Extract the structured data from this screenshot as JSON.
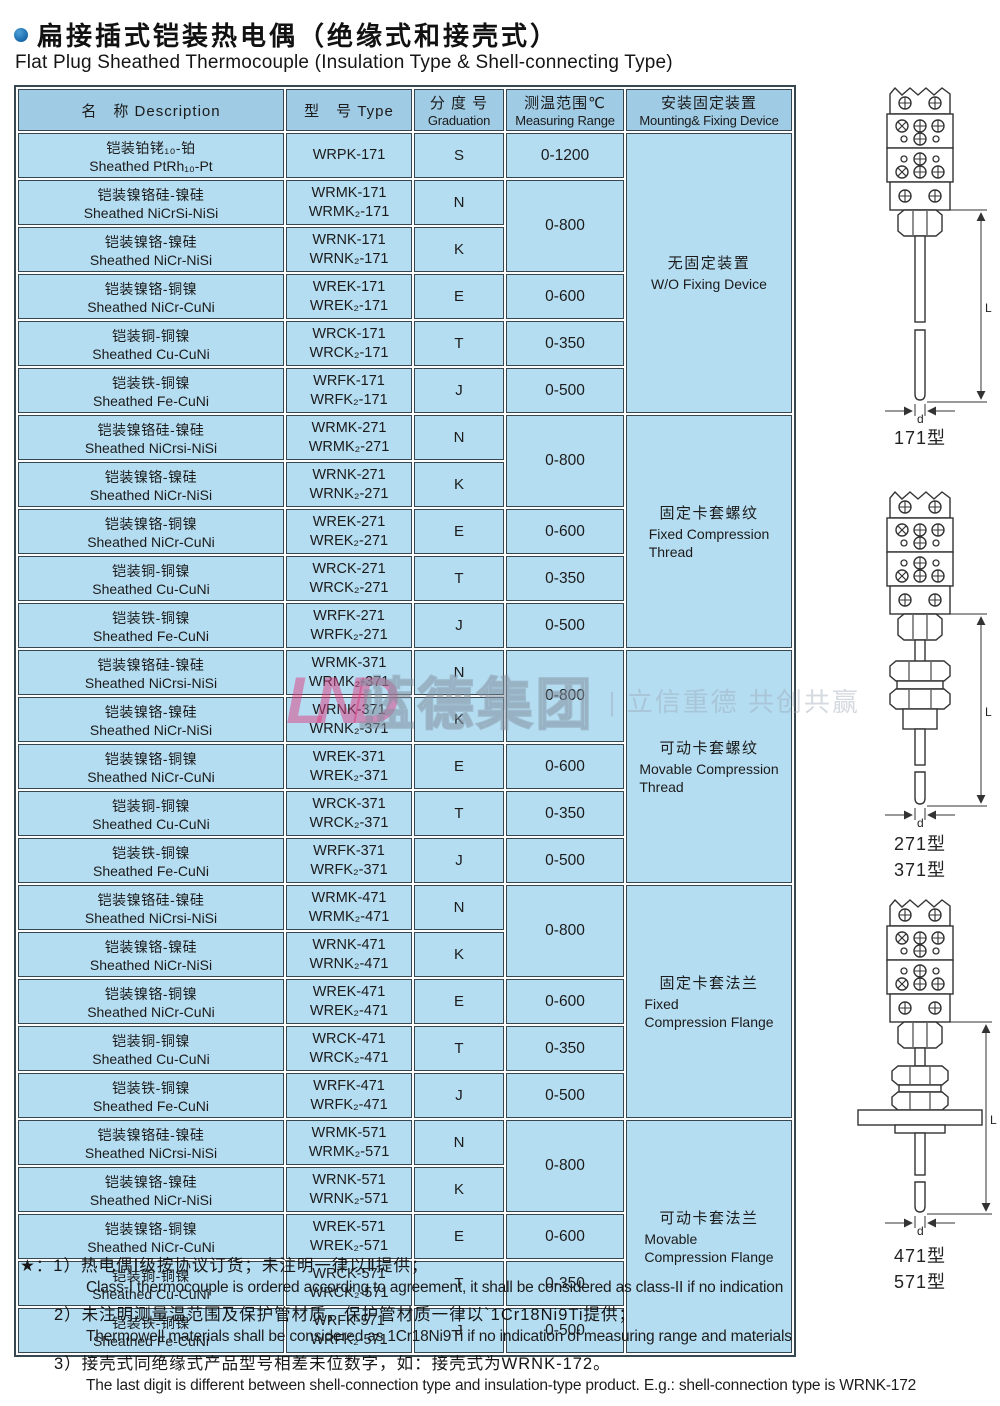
{
  "page": {
    "title_cn": "扁接插式铠装热电偶（绝缘式和接壳式）",
    "title_en": "Flat Plug Sheathed Thermocouple (Insulation Type & Shell-connecting Type)"
  },
  "colors": {
    "accent_blue": "#1565a8",
    "table_body": "#b5ddf1",
    "table_header": "#9fcbe4",
    "border": "#37474f",
    "watermark_pink": "#de3e82"
  },
  "table": {
    "header": {
      "c1": "名　称 Description",
      "c2": "型　号 Type",
      "c3_cn": "分 度 号",
      "c3_en": "Graduation",
      "c4_cn": "测温范围℃",
      "c4_en": "Measuring Range",
      "c5_cn": "安装固定装置",
      "c5_en": "Mounting& Fixing Device"
    },
    "groups": [
      {
        "mount_cn": "无固定装置",
        "mount_en": [
          "W/O Fixing Device"
        ],
        "rows": [
          {
            "cn": "铠装铂铑₁₀-铂",
            "en": "Sheathed PtRh₁₀-Pt",
            "types": [
              "WRPK-171"
            ],
            "grad": "S",
            "range": "0-1200",
            "span": 1
          },
          {
            "cn": "铠装镍铬硅-镍硅",
            "en": "Sheathed NiCrSi-NiSi",
            "types": [
              "WRMK-171",
              "WRMK₂-171"
            ],
            "grad": "N",
            "range": "0-800",
            "span": 2
          },
          {
            "cn": "铠装镍铬-镍硅",
            "en": "Sheathed NiCr-NiSi",
            "types": [
              "WRNK-171",
              "WRNK₂-171"
            ],
            "grad": "K"
          },
          {
            "cn": "铠装镍铬-铜镍",
            "en": "Sheathed NiCr-CuNi",
            "types": [
              "WREK-171",
              "WREK₂-171"
            ],
            "grad": "E",
            "range": "0-600",
            "span": 1
          },
          {
            "cn": "铠装铜-铜镍",
            "en": "Sheathed Cu-CuNi",
            "types": [
              "WRCK-171",
              "WRCK₂-171"
            ],
            "grad": "T",
            "range": "0-350",
            "span": 1
          },
          {
            "cn": "铠装铁-铜镍",
            "en": "Sheathed Fe-CuNi",
            "types": [
              "WRFK-171",
              "WRFK₂-171"
            ],
            "grad": "J",
            "range": "0-500",
            "span": 1
          }
        ]
      },
      {
        "mount_cn": "固定卡套螺纹",
        "mount_en": [
          "Fixed Compression",
          "Thread"
        ],
        "rows": [
          {
            "cn": "铠装镍铬硅-镍硅",
            "en": "Sheathed NiCrsi-NiSi",
            "types": [
              "WRMK-271",
              "WRMK₂-271"
            ],
            "grad": "N",
            "range": "0-800",
            "span": 2
          },
          {
            "cn": "铠装镍铬-镍硅",
            "en": "Sheathed NiCr-NiSi",
            "types": [
              "WRNK-271",
              "WRNK₂-271"
            ],
            "grad": "K"
          },
          {
            "cn": "铠装镍铬-铜镍",
            "en": "Sheathed NiCr-CuNi",
            "types": [
              "WREK-271",
              "WREK₂-271"
            ],
            "grad": "E",
            "range": "0-600",
            "span": 1
          },
          {
            "cn": "铠装铜-铜镍",
            "en": "Sheathed Cu-CuNi",
            "types": [
              "WRCK-271",
              "WRCK₂-271"
            ],
            "grad": "T",
            "range": "0-350",
            "span": 1
          },
          {
            "cn": "铠装铁-铜镍",
            "en": "Sheathed Fe-CuNi",
            "types": [
              "WRFK-271",
              "WRFK₂-271"
            ],
            "grad": "J",
            "range": "0-500",
            "span": 1
          }
        ]
      },
      {
        "mount_cn": "可动卡套螺纹",
        "mount_en": [
          "Movable Compression",
          "Thread"
        ],
        "rows": [
          {
            "cn": "铠装镍铬硅-镍硅",
            "en": "Sheathed NiCrsi-NiSi",
            "types": [
              "WRMK-371",
              "WRMK₂-371"
            ],
            "grad": "N",
            "range": "0-800",
            "span": 2
          },
          {
            "cn": "铠装镍铬-镍硅",
            "en": "Sheathed NiCr-NiSi",
            "types": [
              "WRNK-371",
              "WRNK₂-371"
            ],
            "grad": "K"
          },
          {
            "cn": "铠装镍铬-铜镍",
            "en": "Sheathed NiCr-CuNi",
            "types": [
              "WREK-371",
              "WREK₂-371"
            ],
            "grad": "E",
            "range": "0-600",
            "span": 1
          },
          {
            "cn": "铠装铜-铜镍",
            "en": "Sheathed Cu-CuNi",
            "types": [
              "WRCK-371",
              "WRCK₂-371"
            ],
            "grad": "T",
            "range": "0-350",
            "span": 1
          },
          {
            "cn": "铠装铁-铜镍",
            "en": "Sheathed Fe-CuNi",
            "types": [
              "WRFK-371",
              "WRFK₂-371"
            ],
            "grad": "J",
            "range": "0-500",
            "span": 1
          }
        ]
      },
      {
        "mount_cn": "固定卡套法兰",
        "mount_en": [
          "Fixed",
          "Compression Flange"
        ],
        "rows": [
          {
            "cn": "铠装镍铬硅-镍硅",
            "en": "Sheathed NiCrsi-NiSi",
            "types": [
              "WRMK-471",
              "WRMK₂-471"
            ],
            "grad": "N",
            "range": "0-800",
            "span": 2
          },
          {
            "cn": "铠装镍铬-镍硅",
            "en": "Sheathed NiCr-NiSi",
            "types": [
              "WRNK-471",
              "WRNK₂-471"
            ],
            "grad": "K"
          },
          {
            "cn": "铠装镍铬-铜镍",
            "en": "Sheathed NiCr-CuNi",
            "types": [
              "WREK-471",
              "WREK₂-471"
            ],
            "grad": "E",
            "range": "0-600",
            "span": 1
          },
          {
            "cn": "铠装铜-铜镍",
            "en": "Sheathed Cu-CuNi",
            "types": [
              "WRCK-471",
              "WRCK₂-471"
            ],
            "grad": "T",
            "range": "0-350",
            "span": 1
          },
          {
            "cn": "铠装铁-铜镍",
            "en": "Sheathed Fe-CuNi",
            "types": [
              "WRFK-471",
              "WRFK₂-471"
            ],
            "grad": "J",
            "range": "0-500",
            "span": 1
          }
        ]
      },
      {
        "mount_cn": "可动卡套法兰",
        "mount_en": [
          "Movable",
          "Compression Flange"
        ],
        "rows": [
          {
            "cn": "铠装镍铬硅-镍硅",
            "en": "Sheathed NiCrsi-NiSi",
            "types": [
              "WRMK-571",
              "WRMK₂-571"
            ],
            "grad": "N",
            "range": "0-800",
            "span": 2
          },
          {
            "cn": "铠装镍铬-镍硅",
            "en": "Sheathed NiCr-NiSi",
            "types": [
              "WRNK-571",
              "WRNK₂-571"
            ],
            "grad": "K"
          },
          {
            "cn": "铠装镍铬-铜镍",
            "en": "Sheathed NiCr-CuNi",
            "types": [
              "WREK-571",
              "WREK₂-571"
            ],
            "grad": "E",
            "range": "0-600",
            "span": 1
          },
          {
            "cn": "铠装铜-铜镍",
            "en": "Sheathed Cu-CuNi",
            "types": [
              "WRCK-571",
              "WRCK₂-571"
            ],
            "grad": "T",
            "range": "0-350",
            "span": 1
          },
          {
            "cn": "铠装铁-铜镍",
            "en": "Sheathed Fe-CuNi",
            "types": [
              "WRFK-571",
              "WRFK₂-571"
            ],
            "grad": "J",
            "range": "0-500",
            "span": 1
          }
        ]
      }
    ]
  },
  "diagrams": {
    "dim_length": "L",
    "dim_diameter": "d",
    "label_171": "171型",
    "label_271": "271型",
    "label_371": "371型",
    "label_471": "471型",
    "label_571": "571型"
  },
  "watermark": {
    "logo": "LND",
    "text_main": "蓝德集团",
    "text_side": "| 立信重德 共创共赢"
  },
  "notes": [
    {
      "cn": "★：1）热电偶Ⅰ级按协议订货；未注明一律以Ⅱ提供；",
      "en": "Class-I thermocouple is ordered according to agreement, it shall be considered as class-II if no indication"
    },
    {
      "cn": "2）未注明测量温范围及保护管材质，保护管材质一律以`1Cr18Ni9Ti提供；",
      "en": "Thermowell  materials shall be considered as 1Cr18Ni9Ti if no indication of measuring range and materials"
    },
    {
      "cn": "3）接壳式同绝缘式产品型号相差未位数字，如：接壳式为WRNK-172。",
      "en": "The last digit is different between shell-connection type and insulation-type product. E.g.: shell-connection type is WRNK-172"
    }
  ]
}
